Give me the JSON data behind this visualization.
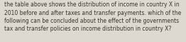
{
  "text": "the table above shows the distribution of income in country X in\n2010 before and after taxes and transfer payments. which of the\nfollowing can be concluded about the effect of the governments\ntax and transfer policies on income distribution in country X?",
  "background_color": "#ddd9d0",
  "text_color": "#3a3530",
  "font_size": 5.5,
  "figsize": [
    2.62,
    0.59
  ],
  "dpi": 100
}
